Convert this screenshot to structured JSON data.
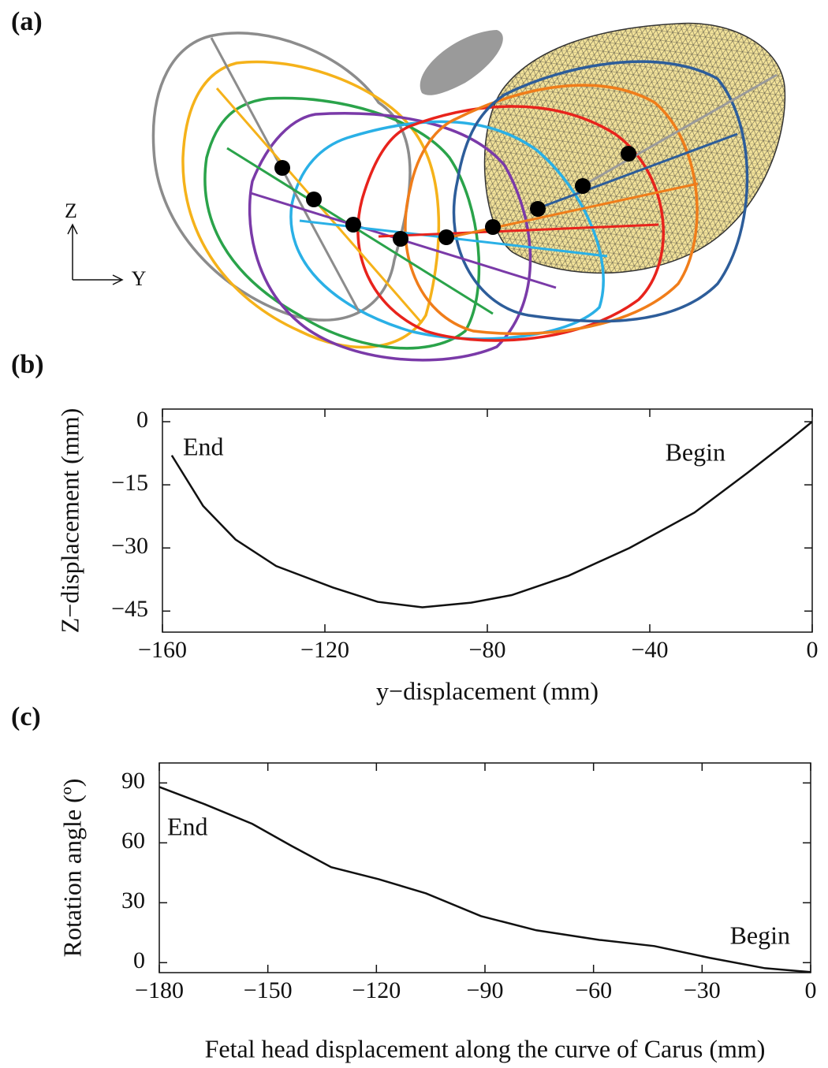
{
  "panels": {
    "labels": [
      "(a)",
      "(b)",
      "(c)"
    ],
    "axis_labels": [
      "Z",
      "Y"
    ]
  },
  "chart_data": [
    {
      "type": "line",
      "xlabel": "y−displacement (mm)",
      "ylabel": "Z−displacement (mm)",
      "annotations": [
        "End",
        "Begin"
      ],
      "color": "#111111",
      "x": [
        -157.7,
        -150,
        -142,
        -132,
        -118,
        -107,
        -96,
        -84,
        -74,
        -60,
        -45,
        -29,
        -16,
        -6,
        0
      ],
      "values": [
        -8,
        -20,
        -28,
        -34.3,
        -39.4,
        -42.8,
        -44.1,
        -43,
        -41.2,
        -36.6,
        -30,
        -21.6,
        -12.2,
        -4.7,
        0
      ],
      "xlim": [
        -160,
        0
      ],
      "ylim": [
        -50,
        3
      ],
      "xticks": [
        {
          "value": -160,
          "label": "−160"
        },
        {
          "value": -120,
          "label": "−120"
        },
        {
          "value": -80,
          "label": "−80"
        },
        {
          "value": -40,
          "label": "−40"
        },
        0
      ],
      "yticks": [
        0,
        {
          "value": -15,
          "label": "−15"
        },
        {
          "value": -30,
          "label": "−30"
        },
        {
          "value": -45,
          "label": "−45"
        }
      ]
    },
    {
      "type": "line",
      "xlabel": "Fetal head displacement along  the curve of Carus (mm)",
      "ylabel": "Rotation angle (º)",
      "annotations": [
        "End",
        "Begin"
      ],
      "color": "#111111",
      "x": [
        -180,
        -167.4,
        -154.3,
        -143.4,
        -132.5,
        -119.4,
        -106.3,
        -91.1,
        -75.8,
        -58.4,
        -43.2,
        -27.9,
        -12.6,
        0
      ],
      "values": [
        88,
        79.3,
        69.5,
        58.4,
        47.8,
        41.8,
        34.7,
        23.3,
        16.2,
        11.4,
        8.3,
        2.4,
        -2.8,
        -4.7
      ],
      "xlim": [
        -180,
        0
      ],
      "ylim": [
        -5,
        100
      ],
      "xticks": [
        {
          "value": -180,
          "label": "−180"
        },
        {
          "value": -150,
          "label": "−150"
        },
        {
          "value": -120,
          "label": "−120"
        },
        {
          "value": -90,
          "label": "−90"
        },
        {
          "value": -60,
          "label": "−60"
        },
        {
          "value": -30,
          "label": "−30"
        },
        0
      ],
      "yticks": [
        0,
        30,
        60,
        90
      ]
    }
  ]
}
